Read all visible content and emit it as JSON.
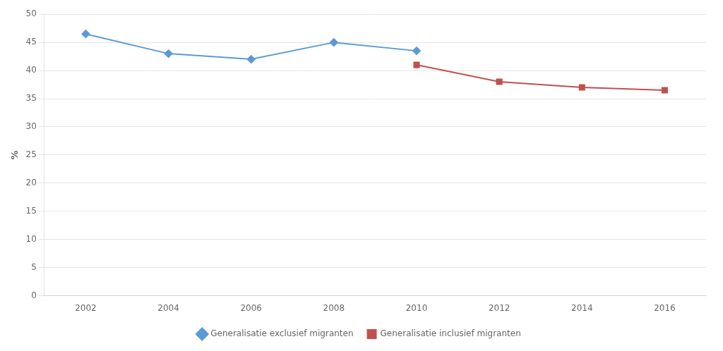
{
  "chart_data": {
    "type": "line",
    "series": [
      {
        "name": "Generalisatie exclusief migranten",
        "color": "#5B9BD5",
        "marker": "diamond",
        "x": [
          2002,
          2004,
          2006,
          2008,
          2010
        ],
        "values": [
          46.5,
          43.0,
          42.0,
          45.0,
          43.5
        ]
      },
      {
        "name": "Generalisatie inclusief migranten",
        "color": "#C0504D",
        "marker": "square",
        "x": [
          2010,
          2012,
          2014,
          2016
        ],
        "values": [
          41.0,
          38.0,
          37.0,
          36.5
        ]
      }
    ],
    "ylabel": "%",
    "xlim": [
      2001,
      2017
    ],
    "xticks": [
      2002,
      2004,
      2006,
      2008,
      2010,
      2012,
      2014,
      2016
    ],
    "ylim": [
      0,
      50
    ],
    "yticks": [
      0,
      5,
      10,
      15,
      20,
      25,
      30,
      35,
      40,
      45,
      50
    ],
    "grid": "y",
    "legend": "bottom"
  }
}
